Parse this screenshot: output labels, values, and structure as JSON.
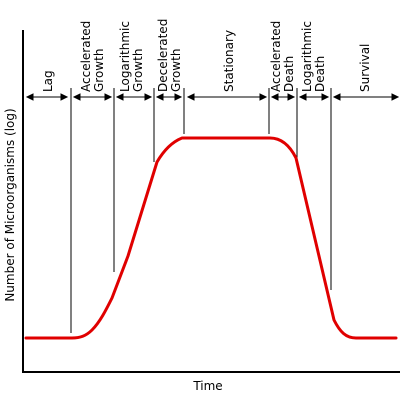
{
  "axes": {
    "xlabel": "Time",
    "ylabel": "Number of Microorganisms (log)"
  },
  "colors": {
    "curve": "#e00000",
    "axis": "#000000"
  },
  "phases": [
    {
      "key": "lag",
      "lines": [
        "Lag"
      ]
    },
    {
      "key": "accelerated-growth",
      "lines": [
        "Accelerated",
        "Growth"
      ]
    },
    {
      "key": "logarithmic-growth",
      "lines": [
        "Logarithmic",
        "Growth"
      ]
    },
    {
      "key": "decelerated-growth",
      "lines": [
        "Decelerated",
        "Growth"
      ]
    },
    {
      "key": "stationary",
      "lines": [
        "Stationary"
      ]
    },
    {
      "key": "accelerated-death",
      "lines": [
        "Accelerated",
        "Death"
      ]
    },
    {
      "key": "logarithmic-death",
      "lines": [
        "Logarithmic",
        "Death"
      ]
    },
    {
      "key": "survival",
      "lines": [
        "Survival"
      ]
    }
  ]
}
